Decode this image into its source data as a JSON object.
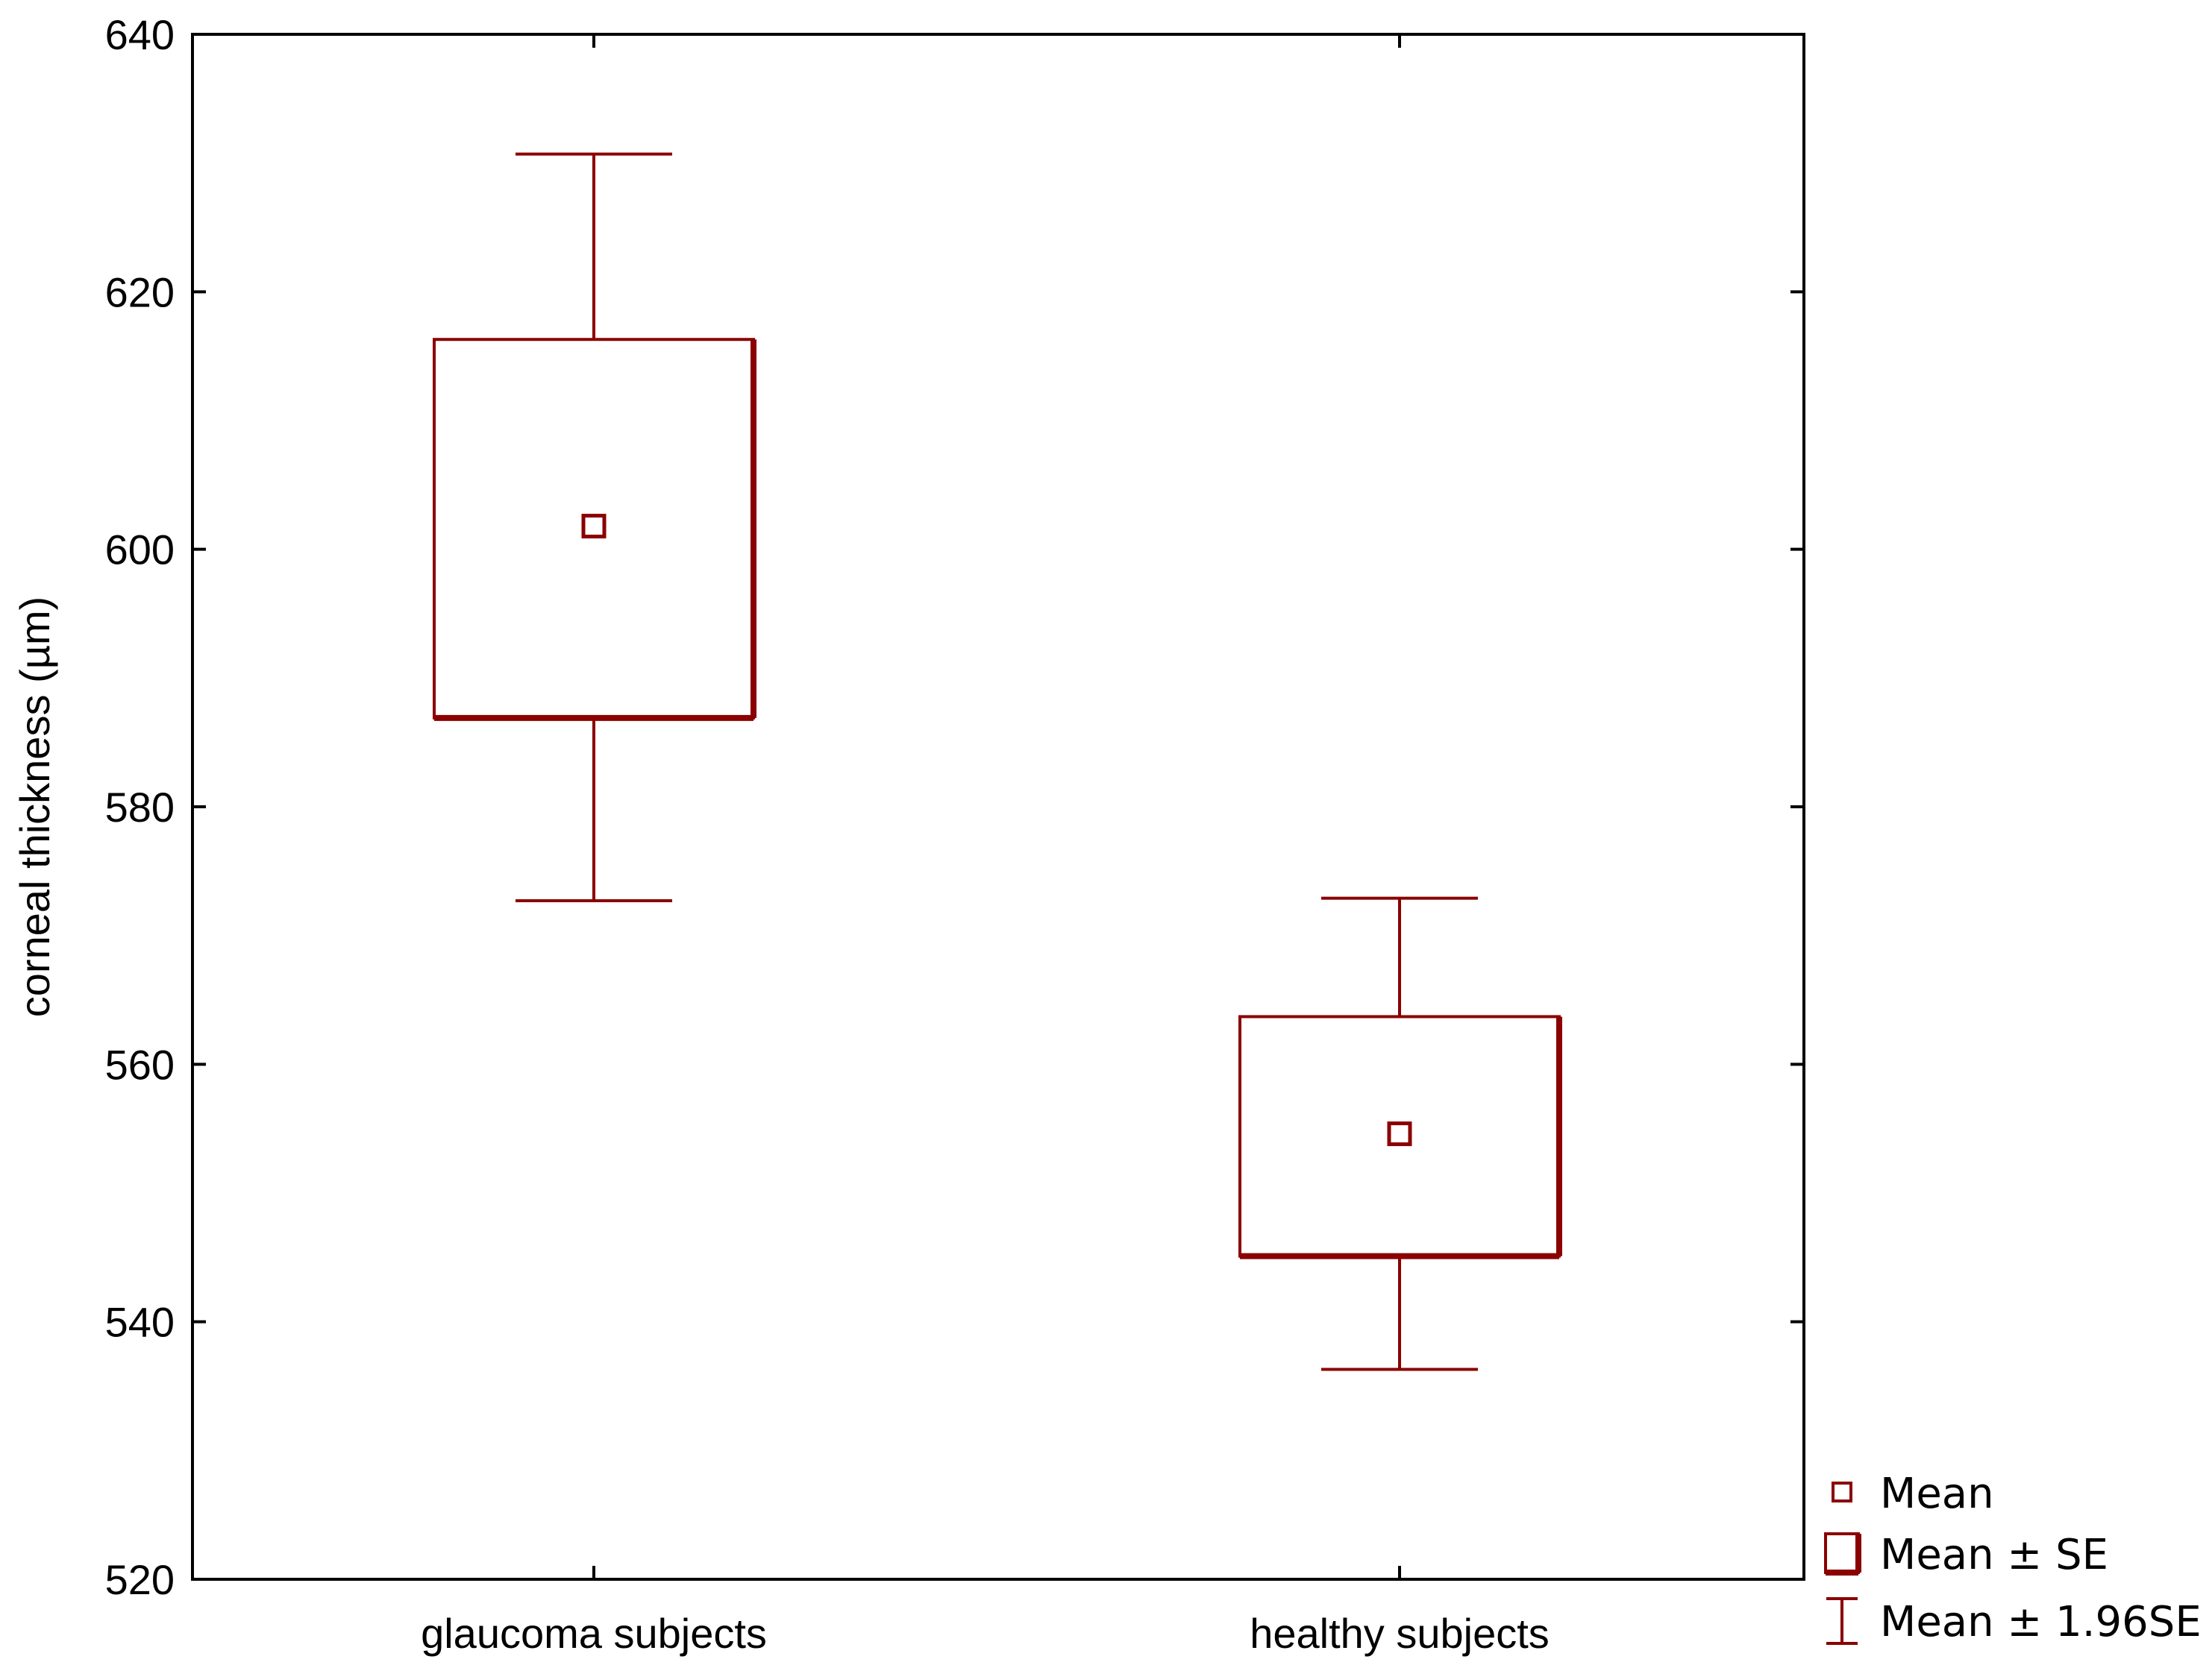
{
  "chart_data": {
    "type": "box",
    "title": "",
    "xlabel": "",
    "ylabel": "corneal thickness (µm)",
    "ylim": [
      520,
      640
    ],
    "yticks": [
      520,
      540,
      560,
      580,
      600,
      620,
      640
    ],
    "categories": [
      "glaucoma subjects",
      "healthy subjects"
    ],
    "groups": [
      {
        "category": "glaucoma subjects",
        "mean": 601.8,
        "se_low": 586.9,
        "se_high": 616.3,
        "ci_low": 572.7,
        "ci_high": 630.7
      },
      {
        "category": "healthy subjects",
        "mean": 554.6,
        "se_low": 545.1,
        "se_high": 563.7,
        "ci_low": 536.3,
        "ci_high": 572.9
      }
    ],
    "grid": false,
    "legend_position": "right-bottom",
    "legend": [
      {
        "label": "Mean",
        "symbol": "mean-square-icon"
      },
      {
        "label": "Mean ± SE",
        "symbol": "se-box-icon"
      },
      {
        "label": "Mean ± 1.96SE",
        "symbol": "whisker-icon"
      }
    ],
    "colors": {
      "series": "#8b0000",
      "axis": "#000000"
    }
  }
}
